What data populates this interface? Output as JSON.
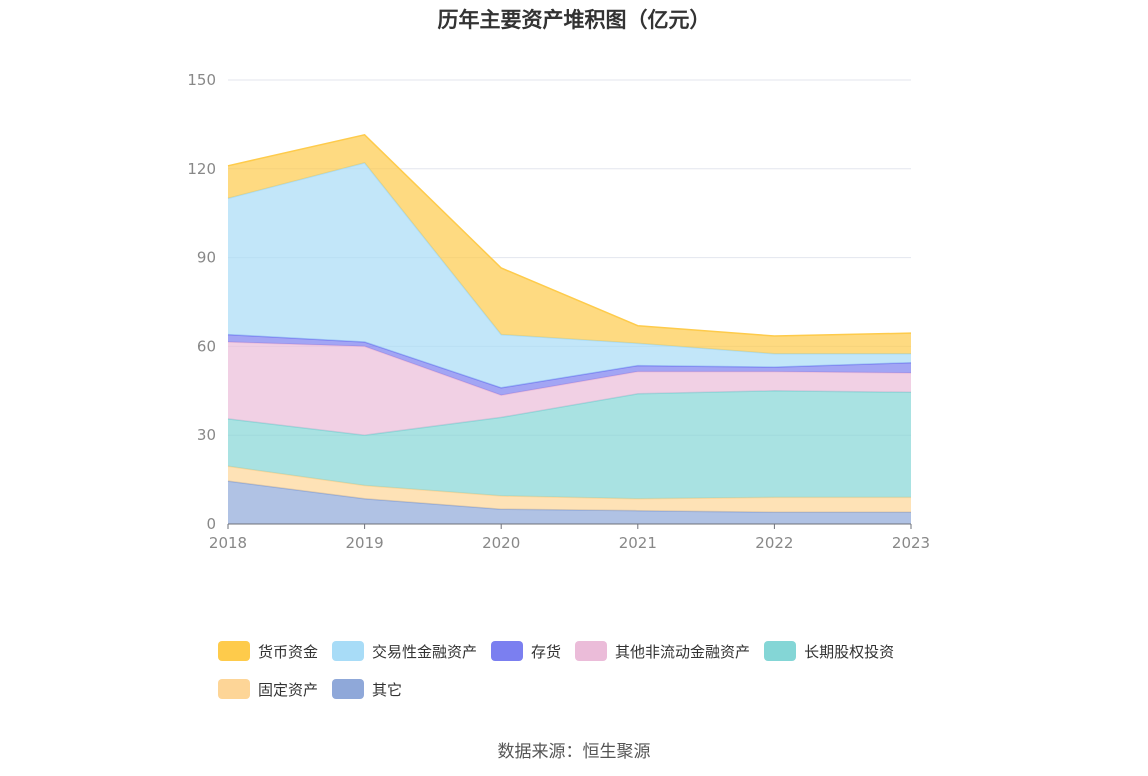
{
  "chart_data": {
    "type": "area",
    "stacked": true,
    "title": "历年主要资产堆积图（亿元）",
    "x": [
      "2018",
      "2019",
      "2020",
      "2021",
      "2022",
      "2023"
    ],
    "ylim": [
      0,
      150
    ],
    "yticks": [
      0,
      30,
      60,
      90,
      120,
      150
    ],
    "grid": true,
    "legend_position": "bottom",
    "series": [
      {
        "name": "其它",
        "color": "#8fa8d9",
        "values": [
          14.5,
          8.5,
          5,
          4.5,
          4,
          4
        ]
      },
      {
        "name": "固定资产",
        "color": "#fdd597",
        "values": [
          5,
          4.5,
          4.5,
          4,
          5,
          5
        ]
      },
      {
        "name": "长期股权投资",
        "color": "#84d6d6",
        "values": [
          16,
          17,
          26.5,
          35.5,
          36,
          35.5
        ]
      },
      {
        "name": "其他非流动金融资产",
        "color": "#ebbcd9",
        "values": [
          26,
          30,
          7.5,
          7.5,
          6.5,
          6.5
        ]
      },
      {
        "name": "存货",
        "color": "#7b7ff0",
        "values": [
          2.5,
          1.5,
          2.5,
          2,
          1.5,
          3.5
        ]
      },
      {
        "name": "交易性金融资产",
        "color": "#a8dcf7",
        "values": [
          46,
          60.5,
          18,
          7.5,
          4.5,
          3
        ]
      },
      {
        "name": "货币资金",
        "color": "#fecb4b",
        "values": [
          11,
          9.5,
          22.5,
          6,
          6,
          7
        ]
      }
    ],
    "legend_order": [
      "货币资金",
      "交易性金融资产",
      "存货",
      "其他非流动金融资产",
      "长期股权投资",
      "固定资产",
      "其它"
    ]
  },
  "source": "数据来源：恒生聚源"
}
